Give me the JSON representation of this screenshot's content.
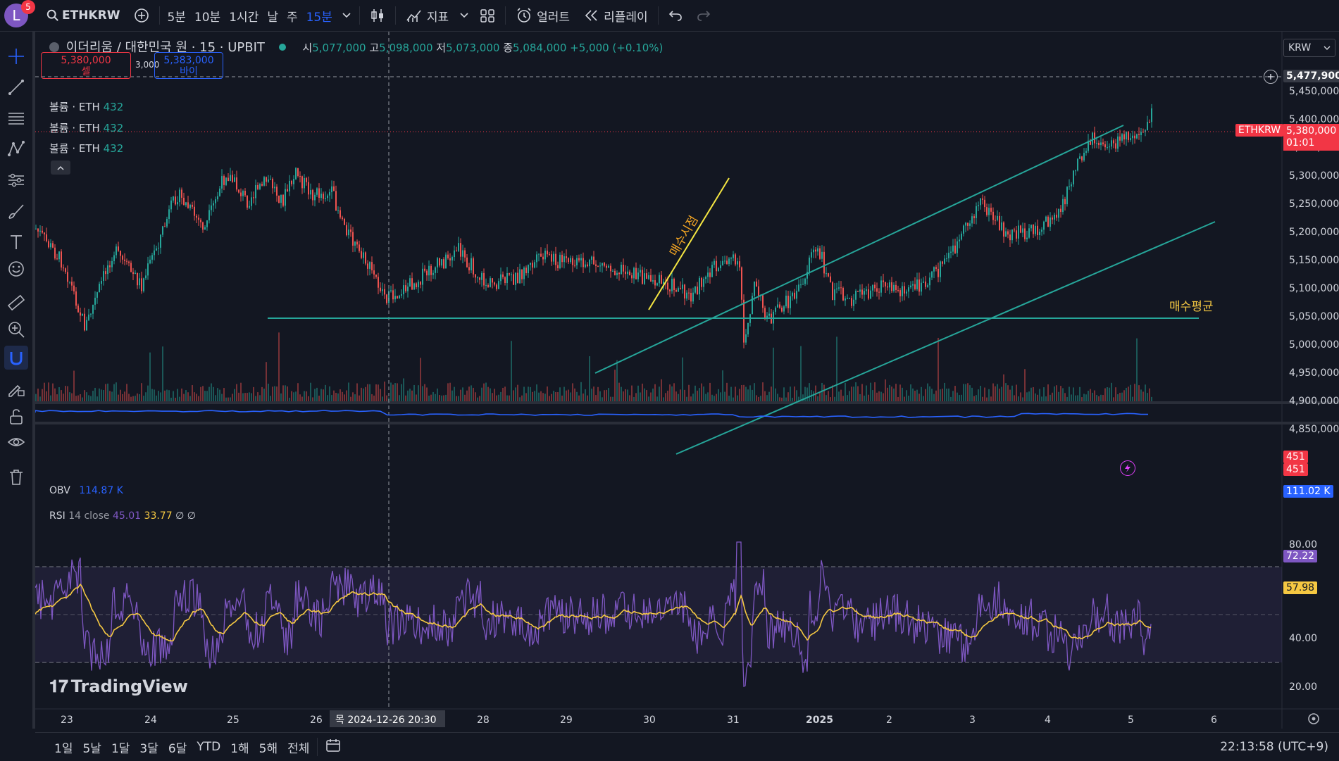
{
  "topbar": {
    "avatar_letter": "L",
    "notification_count": "5",
    "symbol": "ETHKRW",
    "intervals": [
      "5분",
      "10분",
      "1시간",
      "날",
      "주",
      "15분"
    ],
    "active_interval": "15분",
    "indicators_label": "지표",
    "alerts_label": "얼러트",
    "replay_label": "리플레이"
  },
  "header": {
    "title": "이더리움 / 대한민국 원 · 15 · UPBIT",
    "open_label": "시",
    "open": "5,077,000",
    "high_label": "고",
    "high": "5,098,000",
    "low_label": "저",
    "low": "5,073,000",
    "close_label": "종",
    "close": "5,084,000",
    "change": "+5,000 (+0.10%)"
  },
  "trade": {
    "sell_price": "5,380,000",
    "sell_label": "셀",
    "spread": "3,000",
    "buy_price": "5,383,000",
    "buy_label": "바이"
  },
  "volume_legends": [
    {
      "label": "볼륨 · ETH",
      "value": "432"
    },
    {
      "label": "볼륨 · ETH",
      "value": "432"
    },
    {
      "label": "볼륨 · ETH",
      "value": "432"
    }
  ],
  "currency": "KRW",
  "price_axis": {
    "ticks": [
      "5,450,000",
      "5,400,000",
      "5,350,000",
      "5,300,000",
      "5,250,000",
      "5,200,000",
      "5,150,000",
      "5,100,000",
      "5,050,000",
      "5,000,000",
      "4,950,000",
      "4,900,000",
      "4,850,000"
    ],
    "crosshair_price": "5,477,900",
    "last_symbol": "ETHKRW",
    "last_price": "5,380,000",
    "countdown": "01:01",
    "volume_tag_1": "451",
    "volume_tag_2": "451"
  },
  "annotations": {
    "buy_point": "매수시점",
    "avg_buy": "매수평균"
  },
  "obv": {
    "label": "OBV",
    "value": "114.87 K",
    "axis_value": "111.02 K"
  },
  "rsi": {
    "label": "RSI",
    "params": "14 close",
    "value": "45.01",
    "ma_value": "33.77",
    "extra": "∅ ∅",
    "ticks": [
      "80.00",
      "40.00",
      "20.00"
    ],
    "tag_rsi": "72.22",
    "tag_ma": "57.98"
  },
  "time_axis": {
    "labels": [
      "23",
      "24",
      "25",
      "26",
      "28",
      "29",
      "30",
      "31",
      "2025",
      "2",
      "3",
      "4",
      "5",
      "6"
    ],
    "crosshair_label": "목 2024-12-26   20:30"
  },
  "brand": "TradingView",
  "bottombar": {
    "ranges": [
      "1일",
      "5날",
      "1달",
      "3달",
      "6달",
      "YTD",
      "1해",
      "5해",
      "전체"
    ],
    "clock": "22:13:58 (UTC+9)"
  },
  "colors": {
    "up": "#26a69a",
    "down": "#ef5350",
    "channel": "#26a69a",
    "rsi": "#7e57c2",
    "rsi_ma": "#f5c842",
    "obv": "#2962ff",
    "annotation": "#f5c842"
  }
}
